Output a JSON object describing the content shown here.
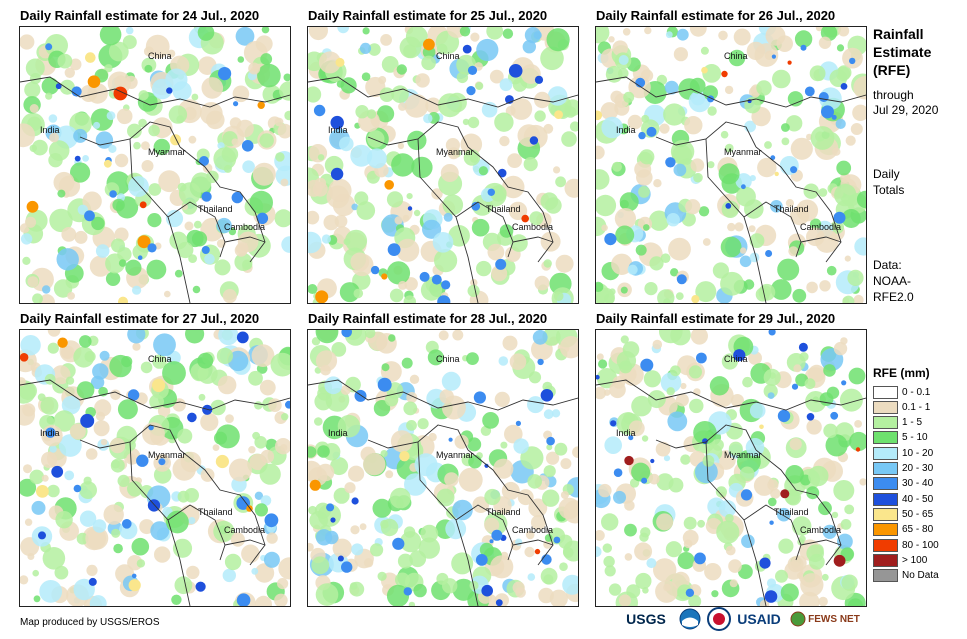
{
  "panels": [
    {
      "title": "Daily Rainfall estimate for 24 Jul., 2020"
    },
    {
      "title": "Daily Rainfall estimate for 25 Jul., 2020"
    },
    {
      "title": "Daily Rainfall estimate for 26 Jul., 2020"
    },
    {
      "title": "Daily Rainfall estimate for 27 Jul., 2020"
    },
    {
      "title": "Daily Rainfall estimate for 28 Jul., 2020"
    },
    {
      "title": "Daily Rainfall estimate for 29 Jul., 2020"
    }
  ],
  "map_labels": {
    "china": "China",
    "india": "India",
    "myanmar": "Myanmar",
    "thailand": "Thailand",
    "cambodia": "Cambodia"
  },
  "side": {
    "title_line1": "Rainfall",
    "title_line2": "Estimate",
    "title_line3": "(RFE)",
    "through": "through",
    "date": "Jul 29, 2020",
    "daily": "Daily",
    "totals": "Totals",
    "data_label": "Data:",
    "source1": "NOAA-",
    "source2": "RFE2.0"
  },
  "legend": {
    "title": "RFE (mm)",
    "items": [
      {
        "label": "0 - 0.1",
        "color": "#ffffff"
      },
      {
        "label": "0.1 - 1",
        "color": "#ecdcc0"
      },
      {
        "label": "1 - 5",
        "color": "#b4f0a0"
      },
      {
        "label": "5 - 10",
        "color": "#6ee16e"
      },
      {
        "label": "10 - 20",
        "color": "#b4ebfa"
      },
      {
        "label": "20 - 30",
        "color": "#78c8f5"
      },
      {
        "label": "30 - 40",
        "color": "#3c8cf0"
      },
      {
        "label": "40 - 50",
        "color": "#1e50dc"
      },
      {
        "label": "50 - 65",
        "color": "#fae68c"
      },
      {
        "label": "65 - 80",
        "color": "#fa9600"
      },
      {
        "label": "80 - 100",
        "color": "#f03c00"
      },
      {
        "label": "> 100",
        "color": "#a01e1e"
      },
      {
        "label": "No Data",
        "color": "#969696"
      }
    ]
  },
  "credit": "Map produced by USGS/EROS",
  "logos": {
    "usgs": "USGS",
    "usaid": "USAID",
    "fewsnet": "FEWS NET"
  }
}
